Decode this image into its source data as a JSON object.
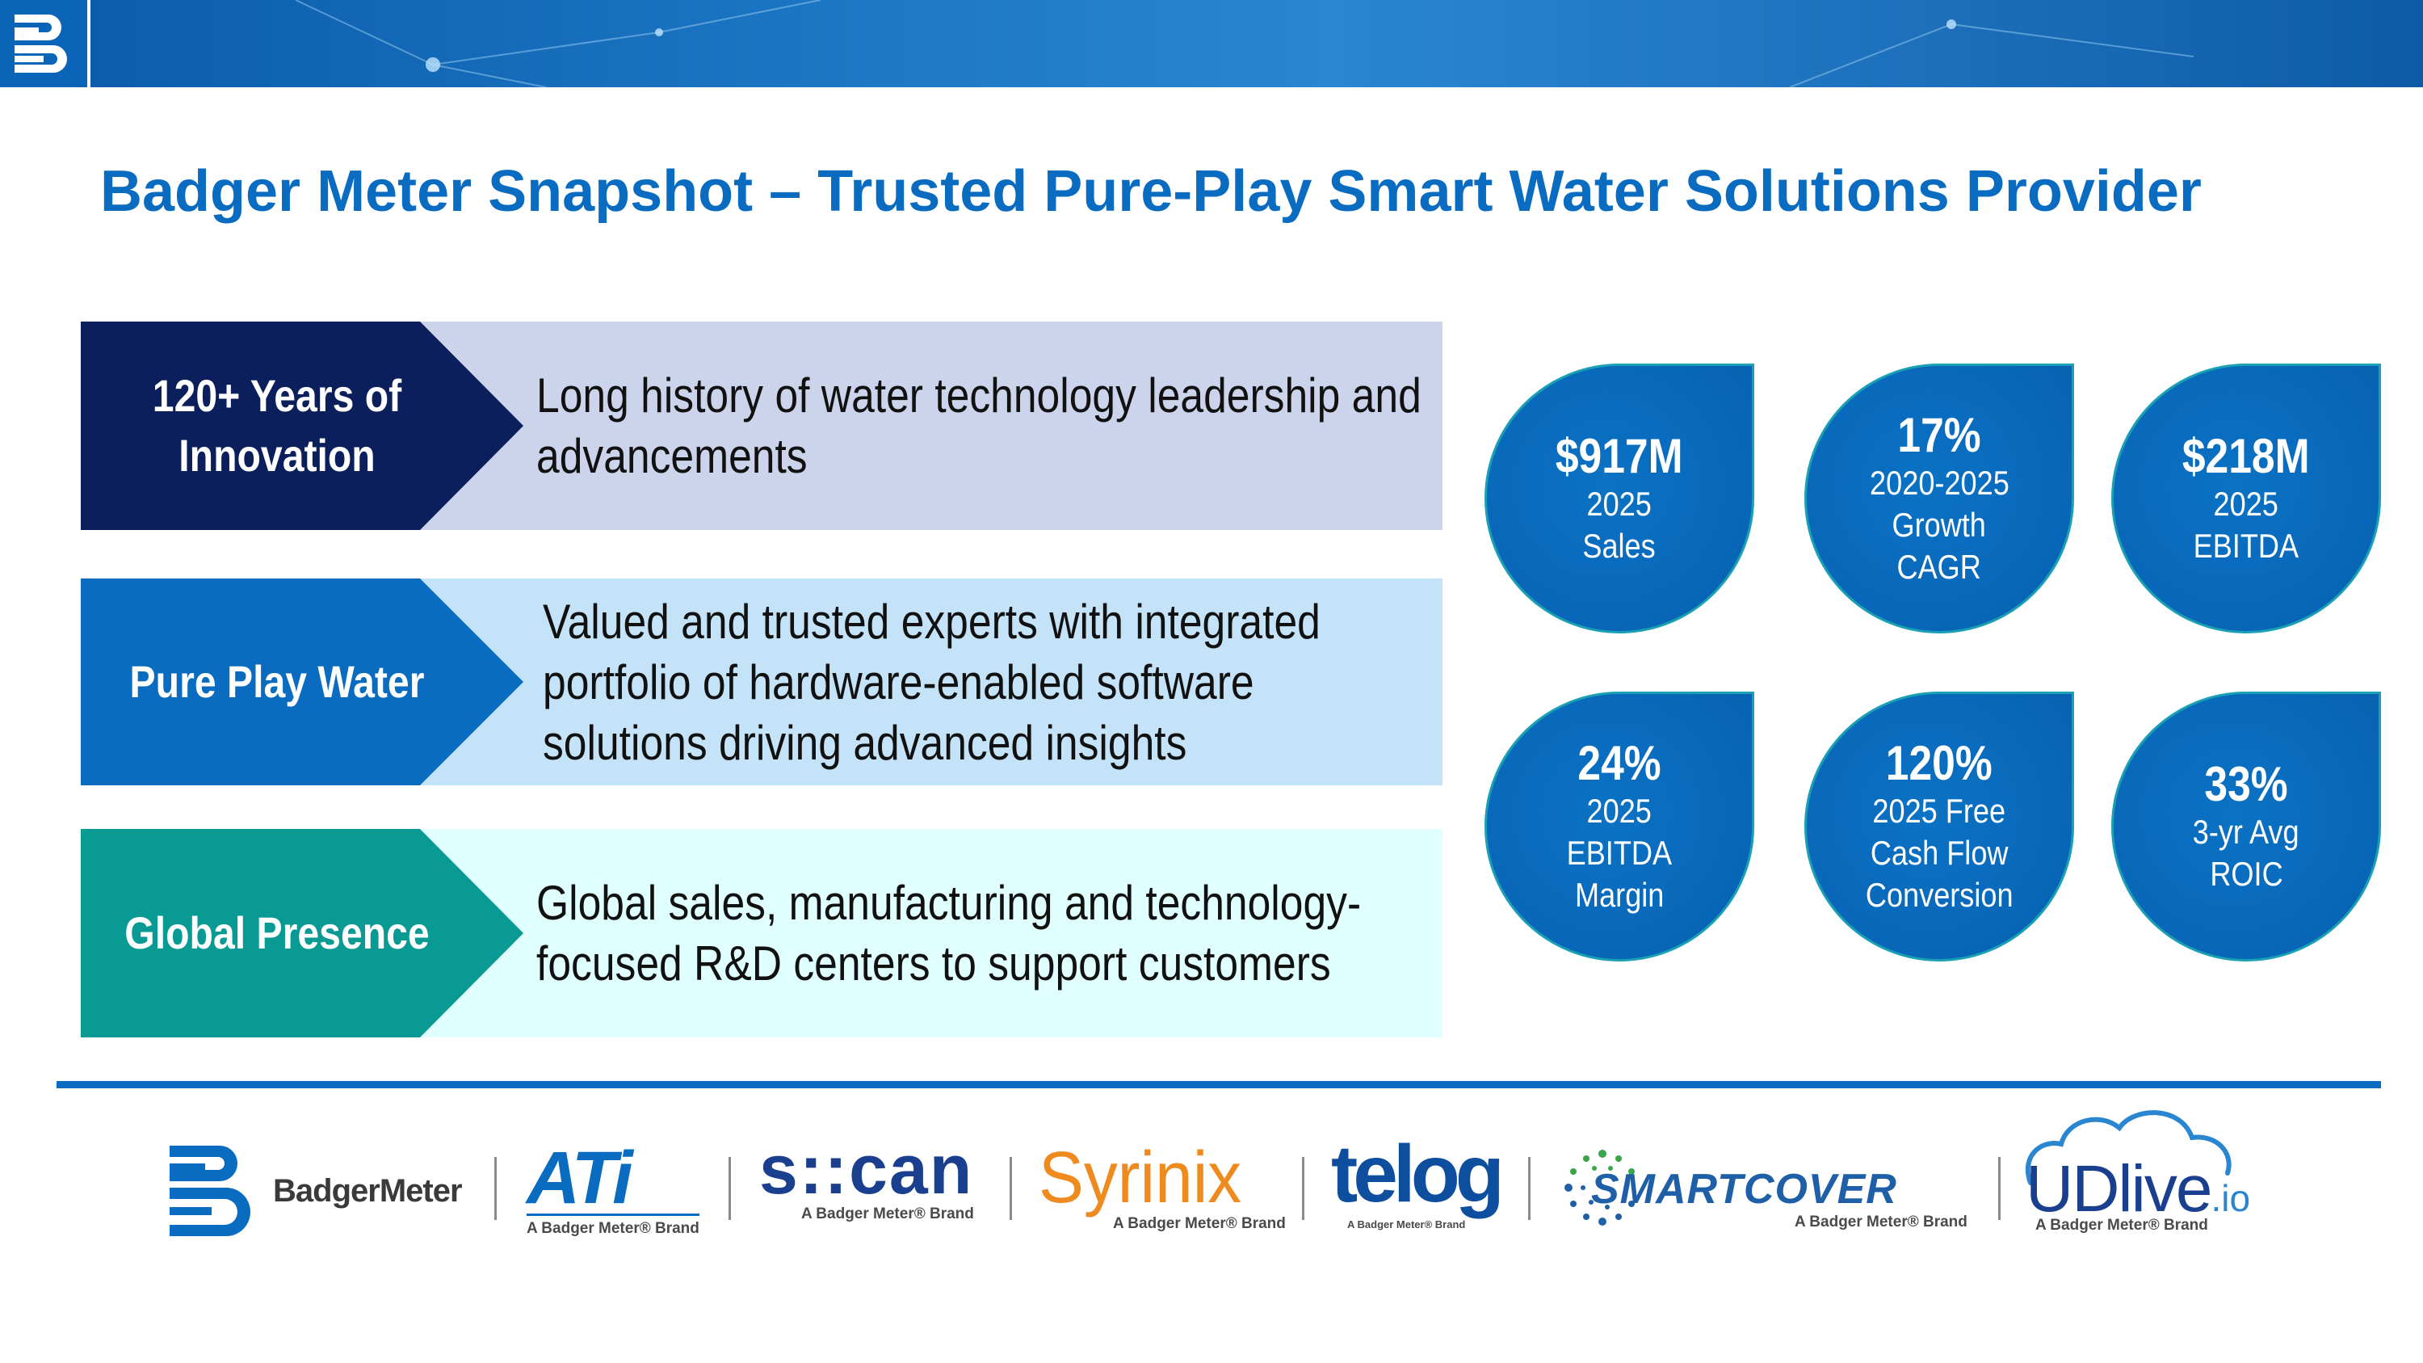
{
  "title": "Badger Meter Snapshot – Trusted Pure-Play Smart Water Solutions Provider",
  "pillars": [
    {
      "label_line1": "120+ Years of",
      "label_line2": "Innovation",
      "desc_line1": "Long history of water technology leadership and",
      "desc_line2": "advancements",
      "color": "#0a1f5c"
    },
    {
      "label_line1": "Pure Play Water",
      "desc_line1": "Valued and trusted experts with integrated",
      "desc_line2": "portfolio of hardware-enabled software",
      "desc_line3": "solutions driving advanced insights",
      "color": "#0a6cc0"
    },
    {
      "label_line1": "Global Presence",
      "desc_line1": "Global sales, manufacturing and technology-",
      "desc_line2": "focused R&D centers to support customers",
      "color": "#0a9a94"
    }
  ],
  "kpis": [
    {
      "value": "$917M",
      "line1": "2025",
      "line2": "Sales"
    },
    {
      "value": "17%",
      "line1": "2020-2025",
      "line2": "Growth",
      "line3": "CAGR"
    },
    {
      "value": "$218M",
      "line1": "2025",
      "line2": "EBITDA"
    },
    {
      "value": "24%",
      "line1": "2025",
      "line2": "EBITDA",
      "line3": "Margin"
    },
    {
      "value": "120%",
      "line1": "2025 Free",
      "line2": "Cash Flow",
      "line3": "Conversion"
    },
    {
      "value": "33%",
      "line1": "3-yr Avg",
      "line2": "ROIC"
    }
  ],
  "brands": {
    "badger": "BadgerMeter",
    "ati": "ATi",
    "scan": "s::can",
    "syrinix": "Syrinix",
    "telog": "telog",
    "smartcover": "SMARTCOVER",
    "udlive": "UDlive",
    "udlive_suffix": ".io",
    "tagline": "A Badger Meter® Brand"
  },
  "colors": {
    "accent": "#0a6cc0",
    "navy": "#0a1f5c",
    "teal": "#0a9a94",
    "orange": "#ef8a1e"
  },
  "icons": [
    "badger-meter-logo-icon",
    "network-pattern-icon",
    "cloud-icon"
  ]
}
